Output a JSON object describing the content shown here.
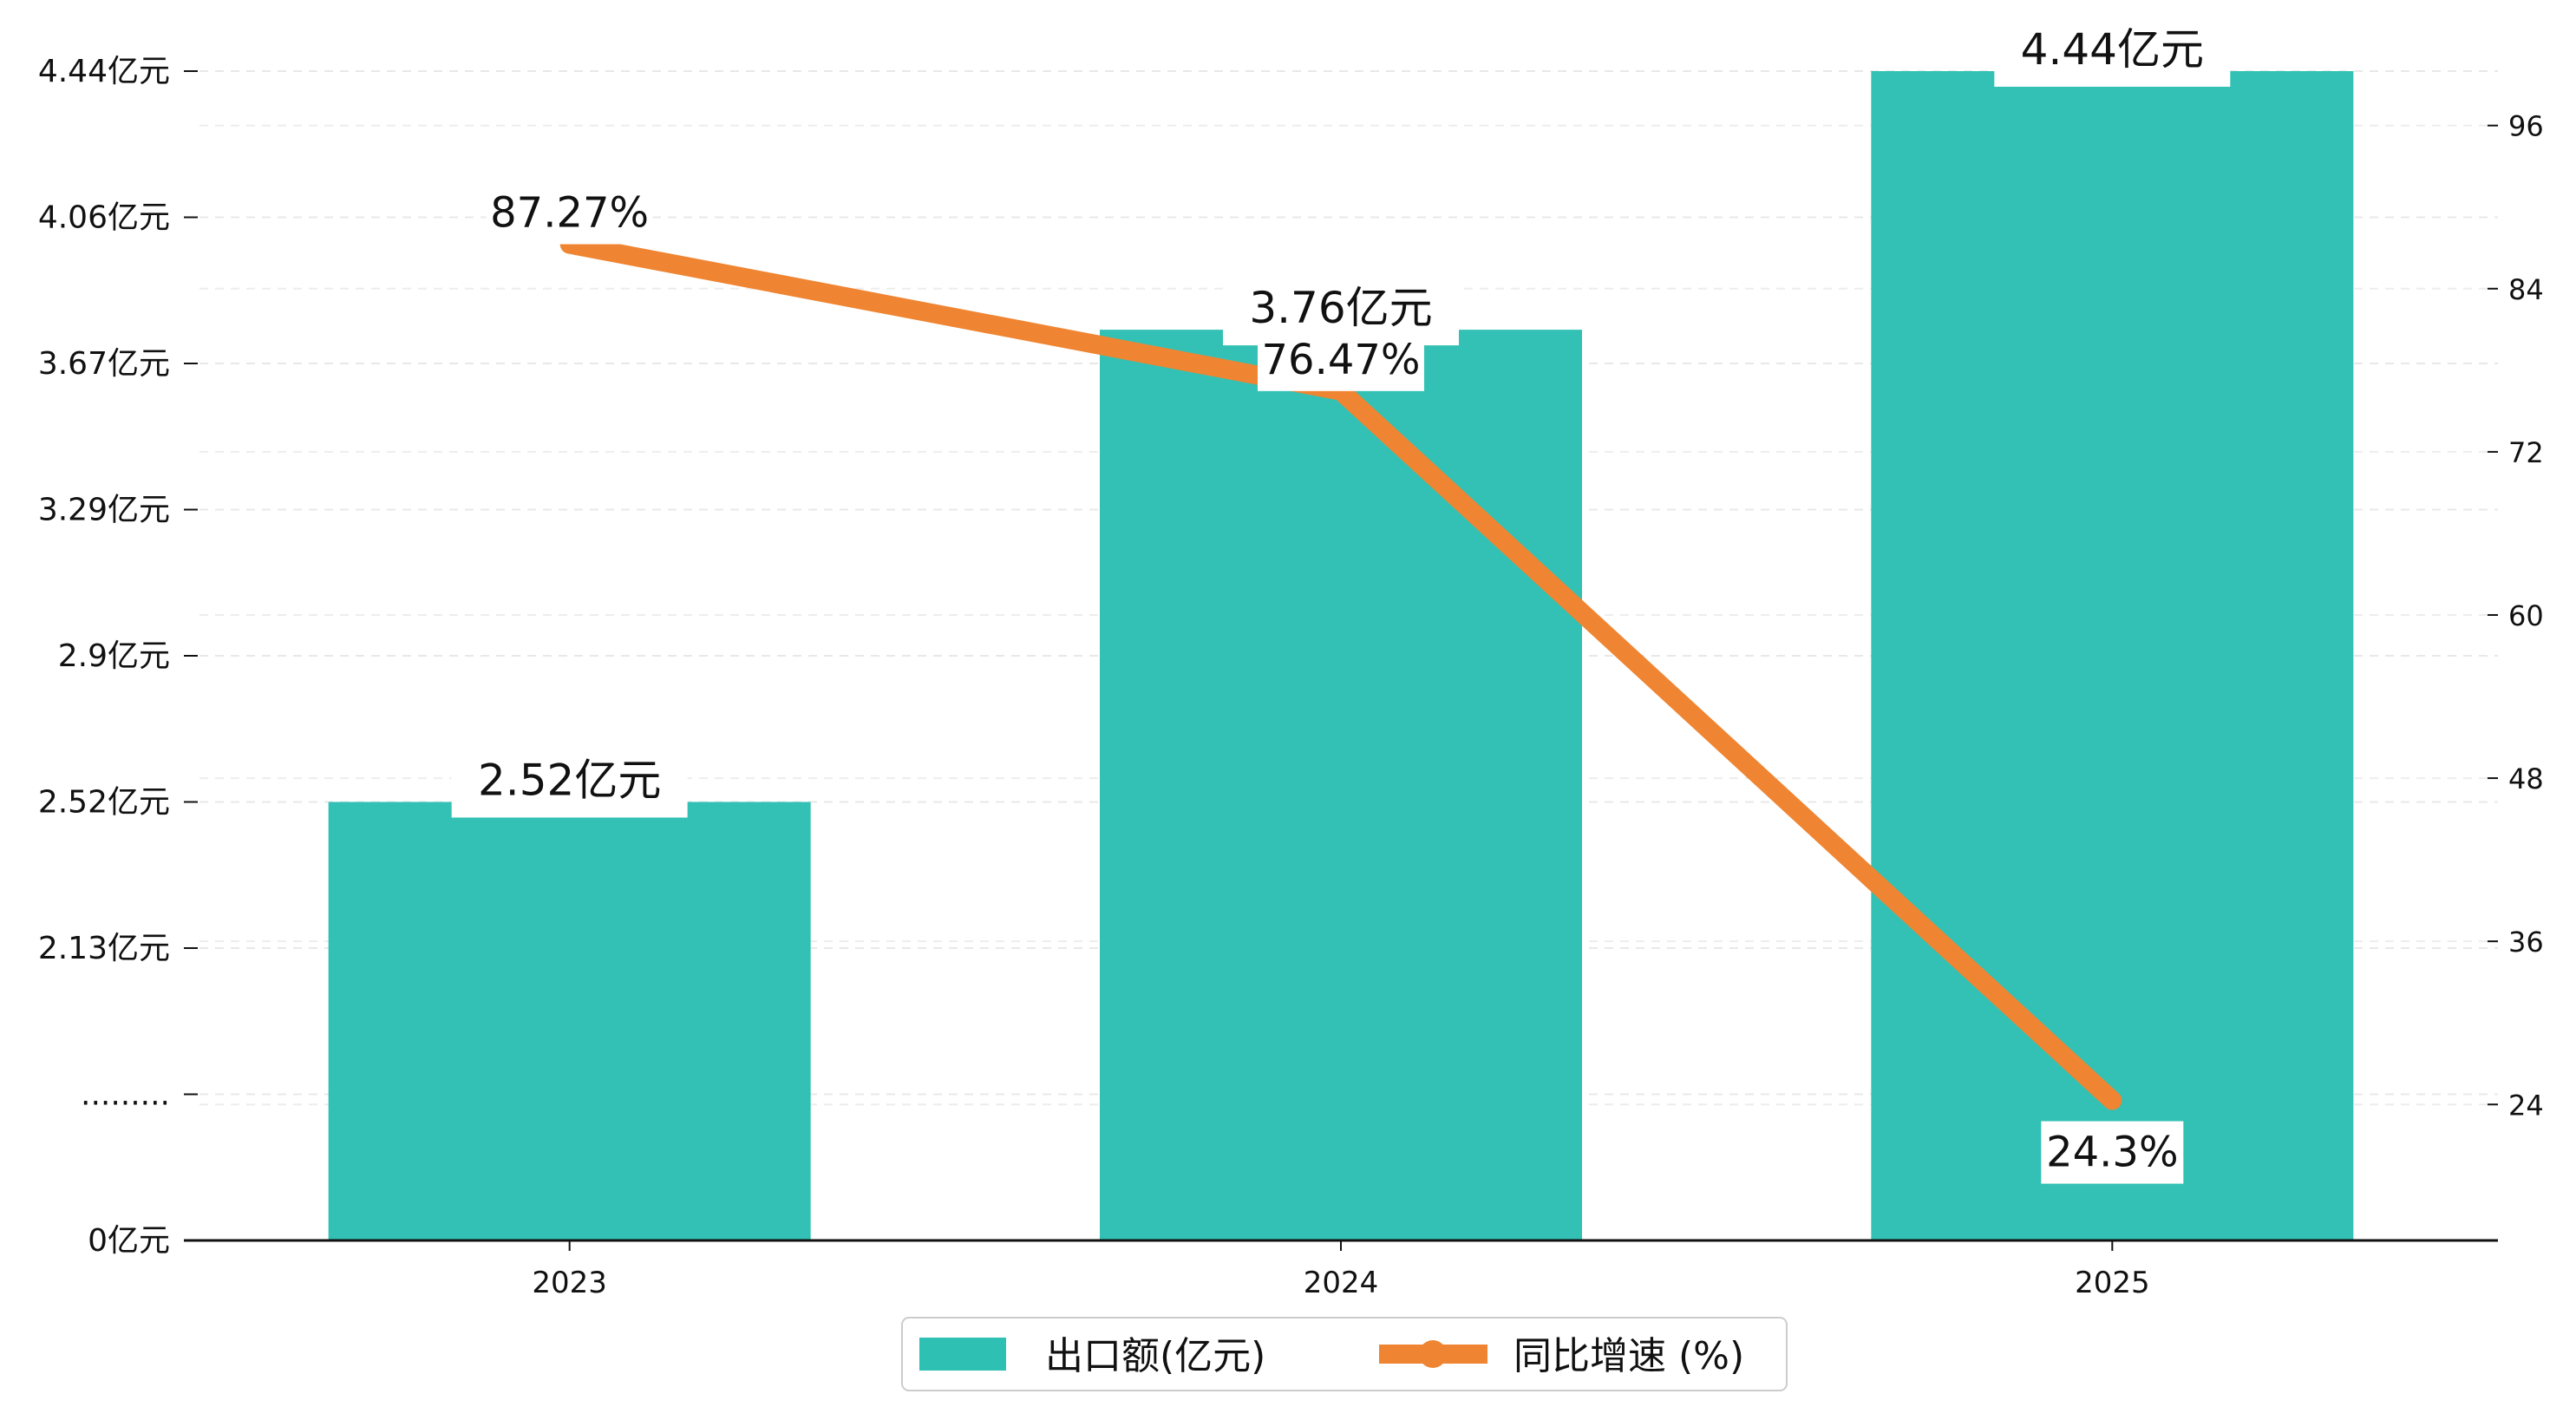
{
  "chart_data": {
    "type": "bar",
    "categories": [
      "2023",
      "2024",
      "2025"
    ],
    "series": [
      {
        "name": "出口额(亿元)",
        "type": "bar",
        "axis": "left",
        "color": "#2ec0b2",
        "values": [
          2.52,
          3.76,
          4.44
        ],
        "labels": [
          "2.52亿元",
          "3.76亿元",
          "4.44亿元"
        ]
      },
      {
        "name": "同比增速 (%)",
        "type": "line",
        "axis": "right",
        "color": "#ef8532",
        "values": [
          87.27,
          76.47,
          24.3
        ],
        "labels": [
          "87.27%",
          "76.47%",
          "24.3%"
        ]
      }
    ],
    "y_left": {
      "ticks": [
        {
          "value": 0,
          "label": "0亿元"
        },
        {
          "value": 1.0,
          "label": "........."
        },
        {
          "value": 2.13,
          "label": "2.13亿元"
        },
        {
          "value": 2.52,
          "label": "2.52亿元"
        },
        {
          "value": 2.9,
          "label": "2.9亿元"
        },
        {
          "value": 3.29,
          "label": "3.29亿元"
        },
        {
          "value": 3.67,
          "label": "3.67亿元"
        },
        {
          "value": 4.06,
          "label": "4.06亿元"
        },
        {
          "value": 4.44,
          "label": "4.44亿元"
        }
      ],
      "broken": true
    },
    "y_right": {
      "ylim": [
        14,
        100
      ],
      "ticks": [
        24,
        36,
        48,
        60,
        72,
        84,
        96
      ]
    },
    "grid": true,
    "legend": {
      "position": "bottom-center",
      "entries": [
        "出口额(亿元)",
        "同比增速 (%)"
      ]
    }
  }
}
